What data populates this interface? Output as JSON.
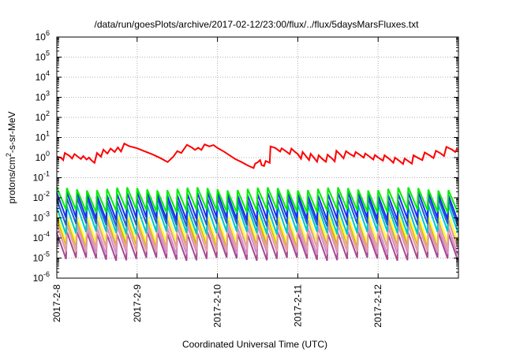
{
  "chart_data": {
    "type": "line",
    "title": "/data/run/goesPlots/archive/2017-02-12/23:00/flux/../flux/5daysMarsFluxes.txt",
    "xlabel": "Coordinated Universal Time (UTC)",
    "ylabel_main": "protons/cm",
    "ylabel_sup": "2",
    "ylabel_rest": "-s-sr-MeV",
    "x_unit": "days since 2017-2-8",
    "xlim": [
      0,
      5
    ],
    "xticks": [
      {
        "value": 0,
        "label": "2017-2-8"
      },
      {
        "value": 1,
        "label": "2017-2-9"
      },
      {
        "value": 2,
        "label": "2017-2-10"
      },
      {
        "value": 3,
        "label": "2017-2-11"
      },
      {
        "value": 4,
        "label": "2017-2-12"
      }
    ],
    "y_scale": "log",
    "ylim_exp": [
      -6,
      6
    ],
    "yticks": [
      {
        "exp": 6,
        "base": "10",
        "sup": "6"
      },
      {
        "exp": 5,
        "base": "10",
        "sup": "5"
      },
      {
        "exp": 4,
        "base": "10",
        "sup": "4"
      },
      {
        "exp": 3,
        "base": "10",
        "sup": "3"
      },
      {
        "exp": 2,
        "base": "10",
        "sup": "2"
      },
      {
        "exp": 1,
        "base": "10",
        "sup": "1"
      },
      {
        "exp": 0,
        "base": "10",
        "sup": "0"
      },
      {
        "exp": -1,
        "base": "10",
        "sup": "-1"
      },
      {
        "exp": -2,
        "base": "10",
        "sup": "-2"
      },
      {
        "exp": -3,
        "base": "10",
        "sup": "-3"
      },
      {
        "exp": -4,
        "base": "10",
        "sup": "-4"
      },
      {
        "exp": -5,
        "base": "10",
        "sup": "-5"
      },
      {
        "exp": -6,
        "base": "10",
        "sup": "-6"
      }
    ],
    "grid": true,
    "legend": "none",
    "main_series": {
      "color": "#ff0000",
      "points": [
        [
          0.0,
          1.1
        ],
        [
          0.05,
          1.0
        ],
        [
          0.08,
          0.75
        ],
        [
          0.1,
          1.7
        ],
        [
          0.16,
          1.2
        ],
        [
          0.19,
          0.9
        ],
        [
          0.22,
          1.5
        ],
        [
          0.27,
          1.05
        ],
        [
          0.3,
          0.85
        ],
        [
          0.33,
          1.2
        ],
        [
          0.37,
          0.8
        ],
        [
          0.4,
          1.0
        ],
        [
          0.44,
          0.68
        ],
        [
          0.47,
          0.55
        ],
        [
          0.5,
          1.7
        ],
        [
          0.55,
          1.1
        ],
        [
          0.58,
          2.5
        ],
        [
          0.63,
          1.6
        ],
        [
          0.67,
          2.8
        ],
        [
          0.72,
          1.9
        ],
        [
          0.76,
          3.2
        ],
        [
          0.8,
          2.0
        ],
        [
          0.84,
          5.0
        ],
        [
          0.9,
          3.7
        ],
        [
          1.0,
          2.9
        ],
        [
          1.1,
          2.0
        ],
        [
          1.2,
          1.4
        ],
        [
          1.3,
          0.9
        ],
        [
          1.38,
          0.6
        ],
        [
          1.45,
          1.1
        ],
        [
          1.5,
          2.1
        ],
        [
          1.55,
          1.7
        ],
        [
          1.62,
          4.3
        ],
        [
          1.68,
          3.2
        ],
        [
          1.72,
          2.4
        ],
        [
          1.76,
          3.1
        ],
        [
          1.8,
          2.4
        ],
        [
          1.84,
          4.5
        ],
        [
          1.9,
          3.6
        ],
        [
          1.95,
          4.2
        ],
        [
          2.0,
          3.0
        ],
        [
          2.08,
          2.0
        ],
        [
          2.15,
          1.3
        ],
        [
          2.22,
          0.85
        ],
        [
          2.3,
          0.6
        ],
        [
          2.38,
          0.4
        ],
        [
          2.45,
          0.3
        ],
        [
          2.47,
          0.5
        ],
        [
          2.5,
          0.58
        ],
        [
          2.53,
          0.75
        ],
        [
          2.55,
          0.42
        ],
        [
          2.58,
          0.38
        ],
        [
          2.6,
          0.68
        ],
        [
          2.65,
          0.55
        ],
        [
          2.66,
          3.6
        ],
        [
          2.72,
          3.0
        ],
        [
          2.78,
          2.0
        ],
        [
          2.8,
          2.9
        ],
        [
          2.85,
          2.1
        ],
        [
          2.9,
          1.5
        ],
        [
          2.92,
          2.8
        ],
        [
          2.96,
          2.0
        ],
        [
          3.0,
          1.5
        ],
        [
          3.04,
          0.88
        ],
        [
          3.06,
          1.9
        ],
        [
          3.1,
          1.2
        ],
        [
          3.14,
          0.75
        ],
        [
          3.16,
          1.55
        ],
        [
          3.2,
          1.0
        ],
        [
          3.24,
          0.62
        ],
        [
          3.26,
          1.3
        ],
        [
          3.3,
          0.9
        ],
        [
          3.35,
          0.62
        ],
        [
          3.37,
          1.4
        ],
        [
          3.42,
          0.95
        ],
        [
          3.46,
          0.65
        ],
        [
          3.48,
          2.2
        ],
        [
          3.53,
          1.4
        ],
        [
          3.57,
          0.92
        ],
        [
          3.6,
          2.1
        ],
        [
          3.65,
          1.5
        ],
        [
          3.7,
          1.15
        ],
        [
          3.72,
          1.9
        ],
        [
          3.77,
          1.4
        ],
        [
          3.82,
          1.0
        ],
        [
          3.84,
          1.6
        ],
        [
          3.89,
          1.15
        ],
        [
          3.94,
          0.8
        ],
        [
          3.96,
          1.35
        ],
        [
          4.01,
          0.95
        ],
        [
          4.06,
          0.7
        ],
        [
          4.08,
          1.3
        ],
        [
          4.14,
          0.85
        ],
        [
          4.19,
          0.55
        ],
        [
          4.21,
          1.0
        ],
        [
          4.26,
          0.7
        ],
        [
          4.31,
          0.48
        ],
        [
          4.33,
          0.9
        ],
        [
          4.38,
          0.65
        ],
        [
          4.42,
          0.5
        ],
        [
          4.44,
          1.3
        ],
        [
          4.5,
          0.95
        ],
        [
          4.55,
          0.75
        ],
        [
          4.58,
          1.8
        ],
        [
          4.64,
          1.3
        ],
        [
          4.69,
          0.95
        ],
        [
          4.72,
          2.2
        ],
        [
          4.78,
          1.6
        ],
        [
          4.82,
          1.2
        ],
        [
          4.85,
          3.4
        ],
        [
          4.92,
          2.5
        ],
        [
          4.96,
          1.9
        ],
        [
          4.98,
          2.6
        ],
        [
          5.0,
          2.2
        ]
      ]
    },
    "sawtooth_series": [
      {
        "color": "#a64b8f",
        "peak": 0.00018,
        "trough": 9e-06
      },
      {
        "color": "#d48ccc",
        "peak": 0.0004,
        "trough": 1.8e-05
      },
      {
        "color": "#d4b000",
        "peak": 0.0009,
        "trough": 3.8e-05
      },
      {
        "color": "#ffff33",
        "peak": 0.0015,
        "trough": 6.5e-05
      },
      {
        "color": "#e6a0a0",
        "peak": 0.0006,
        "trough": 2.6e-05
      },
      {
        "color": "#00c8c8",
        "peak": 0.004,
        "trough": 0.00018
      },
      {
        "color": "#1f5fd0",
        "peak": 0.0085,
        "trough": 0.00045
      },
      {
        "color": "#1a2ef0",
        "peak": 0.016,
        "trough": 0.0009
      },
      {
        "color": "#00ee00",
        "peak": 0.028,
        "trough": 0.0022
      }
    ],
    "sawtooth_cycles": 40
  }
}
